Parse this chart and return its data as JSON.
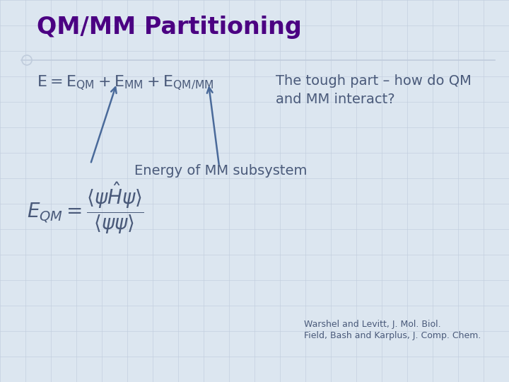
{
  "title": "QM/MM Partitioning",
  "title_color": "#4B0082",
  "title_fontsize": 24,
  "bg_color": "#dce6f0",
  "grid_color": "#c0ccdc",
  "equation_color": "#4a5a7a",
  "text_color": "#4a5a7a",
  "arrow_color": "#4a6a9a",
  "tough_part_line1": "The tough part – how do QM",
  "tough_part_line2": "and MM interact?",
  "energy_mm": "Energy of MM subsystem",
  "citation1": "Warshel and Levitt, J. Mol. Biol.",
  "citation2": "Field, Bash and Karplus, J. Comp. Chem.",
  "eq_fontsize": 16,
  "tough_fontsize": 14,
  "energy_fontsize": 14,
  "qm_eq_fontsize": 20,
  "cite_fontsize": 9
}
